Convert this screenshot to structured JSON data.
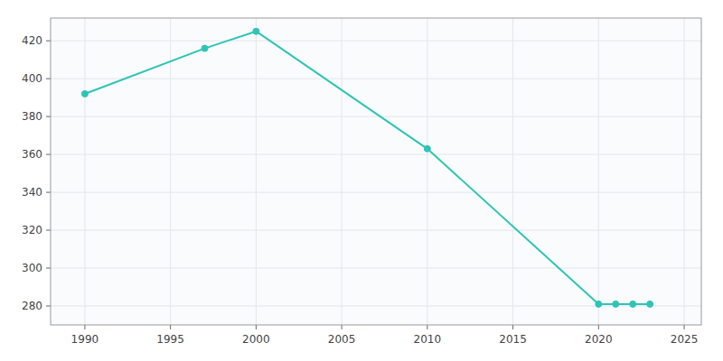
{
  "chart_data": {
    "type": "line",
    "x": [
      1990,
      1997,
      2000,
      2010,
      2020,
      2021,
      2022,
      2023
    ],
    "values": [
      392,
      416,
      425,
      363,
      281,
      281,
      281,
      281
    ],
    "color": "#2ec4b6",
    "marker": "circle",
    "xlim": [
      1988,
      2026
    ],
    "ylim": [
      270,
      432
    ],
    "xticks": [
      1990,
      1995,
      2000,
      2005,
      2010,
      2015,
      2020,
      2025
    ],
    "yticks": [
      280,
      300,
      320,
      340,
      360,
      380,
      400,
      420
    ],
    "grid": true
  }
}
